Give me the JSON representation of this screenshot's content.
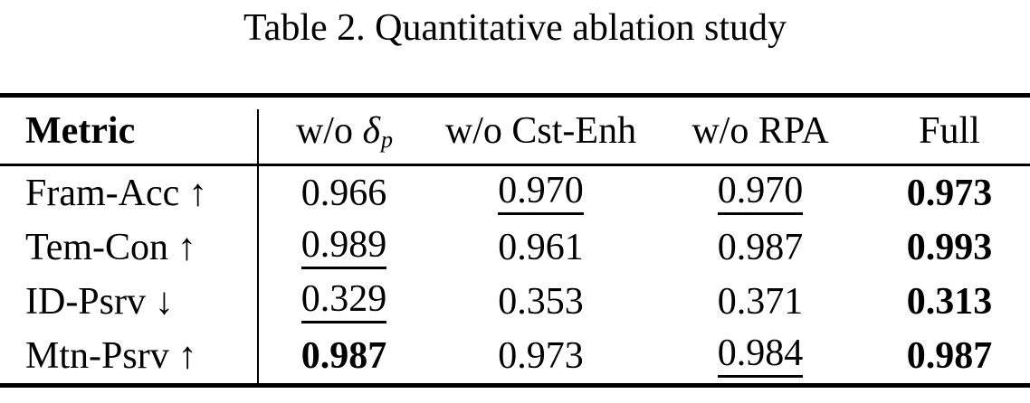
{
  "page": {
    "background_color": "#ffffff",
    "text_color": "#000000"
  },
  "caption": "Table 2. Quantitative ablation study",
  "table": {
    "header": {
      "metric": "Metric",
      "col_delta": {
        "prefix": "w/o ",
        "symbol": "δ",
        "subscript": "p"
      },
      "col_cst_enh": "w/o Cst-Enh",
      "col_rpa": "w/o RPA",
      "col_full": "Full"
    },
    "rows": [
      {
        "metric": "Fram-Acc",
        "direction": "↑",
        "values": [
          {
            "text": "0.966",
            "style": "plain"
          },
          {
            "text": "0.970",
            "style": "underline"
          },
          {
            "text": "0.970",
            "style": "underline"
          },
          {
            "text": "0.973",
            "style": "bold"
          }
        ]
      },
      {
        "metric": "Tem-Con",
        "direction": "↑",
        "values": [
          {
            "text": "0.989",
            "style": "underline"
          },
          {
            "text": "0.961",
            "style": "plain"
          },
          {
            "text": "0.987",
            "style": "plain"
          },
          {
            "text": "0.993",
            "style": "bold"
          }
        ]
      },
      {
        "metric": "ID-Psrv",
        "direction": "↓",
        "values": [
          {
            "text": "0.329",
            "style": "underline"
          },
          {
            "text": "0.353",
            "style": "plain"
          },
          {
            "text": "0.371",
            "style": "plain"
          },
          {
            "text": "0.313",
            "style": "bold"
          }
        ]
      },
      {
        "metric": "Mtn-Psrv",
        "direction": "↑",
        "values": [
          {
            "text": "0.987",
            "style": "bold"
          },
          {
            "text": "0.973",
            "style": "plain"
          },
          {
            "text": "0.984",
            "style": "underline"
          },
          {
            "text": "0.987",
            "style": "bold"
          }
        ]
      }
    ]
  }
}
